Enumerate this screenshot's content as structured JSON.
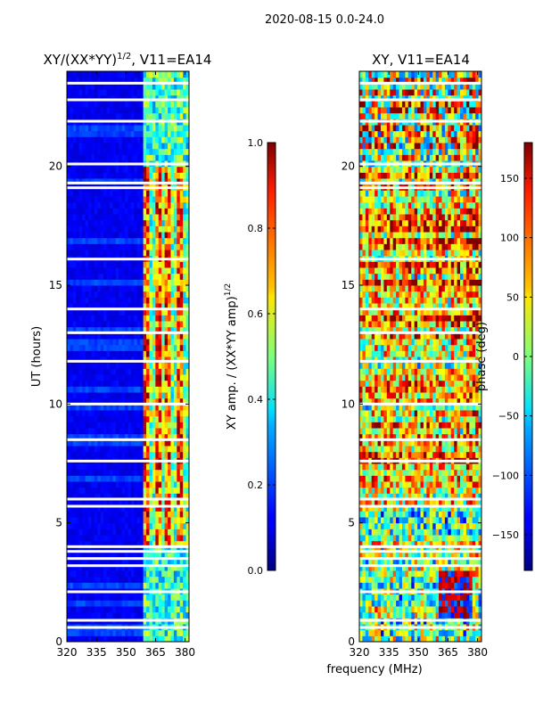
{
  "figure": {
    "suptitle": "2020-08-15 0.0-24.0",
    "xlabel": "frequency (MHz)",
    "ylabel": "UT (hours)"
  },
  "chart_data": [
    {
      "type": "heatmap",
      "title": "XY/(XX*YY)",
      "title_exponent": "1/2",
      "title_suffix": ", V11=EA14",
      "xlabel": "frequency (MHz)",
      "ylabel": "UT (hours)",
      "xlim": [
        320,
        382
      ],
      "ylim": [
        0,
        24
      ],
      "xticks": [
        320,
        335,
        350,
        365,
        380
      ],
      "yticks": [
        0,
        5,
        10,
        15,
        20
      ],
      "colorbar": {
        "label": "XY amp. / (XX*YY amp)",
        "label_exponent": "1/2",
        "range": [
          0.0,
          1.0
        ],
        "ticks": [
          "0.0",
          "0.2",
          "0.4",
          "0.6",
          "0.8",
          "1.0"
        ],
        "colormap": "jet"
      },
      "notes": "Amplitude ratio mostly near 0 below ~359 MHz; strong vertical bands of high values (0.4-1.0) between ~359 and ~380 MHz; white gaps mark flagged time ranges."
    },
    {
      "type": "heatmap",
      "title": "XY, V11=EA14",
      "xlabel": "frequency (MHz)",
      "ylabel": "",
      "xlim": [
        320,
        382
      ],
      "ylim": [
        0,
        24
      ],
      "xticks": [
        320,
        335,
        350,
        365,
        380
      ],
      "yticks": [
        0,
        5,
        10,
        15,
        20
      ],
      "colorbar": {
        "label": "phase (deg)",
        "range": [
          -180,
          180
        ],
        "ticks": [
          "−150",
          "−100",
          "−50",
          "0",
          "50",
          "100",
          "150"
        ],
        "colormap": "jet"
      },
      "notes": "Phase values vary widely; green dominates the lower hours, red/orange patches from ~6 to ~24 UT, a blue/red block near 360-378 MHz at 1-3 UT."
    }
  ],
  "flagged_hours": [
    0.6,
    0.9,
    2.1,
    3.2,
    3.5,
    3.8,
    4.0,
    5.7,
    6.0,
    7.6,
    8.5,
    10.0,
    11.8,
    13.0,
    14.0,
    16.1,
    19.1,
    19.3,
    20.1,
    21.9,
    22.8,
    23.5
  ]
}
